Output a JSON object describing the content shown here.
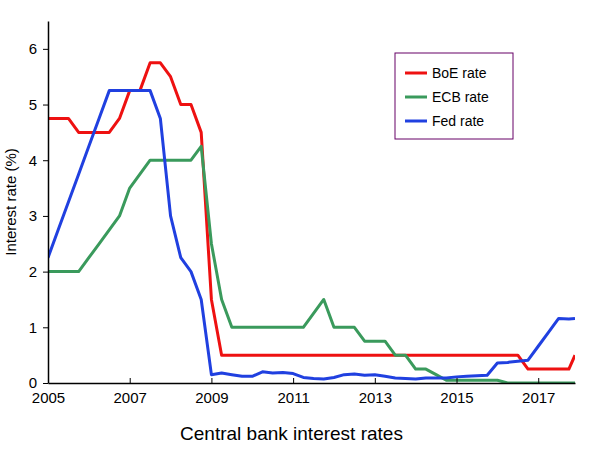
{
  "chart_data": {
    "type": "line",
    "title": "Central bank interest rates",
    "y_label": "Interest rate (%)",
    "x": [
      2005,
      2005.25,
      2005.5,
      2005.75,
      2006,
      2006.25,
      2006.5,
      2006.75,
      2007,
      2007.25,
      2007.5,
      2007.75,
      2008,
      2008.25,
      2008.5,
      2008.75,
      2009,
      2009.25,
      2009.5,
      2009.75,
      2010,
      2010.25,
      2010.5,
      2010.75,
      2011,
      2011.25,
      2011.5,
      2011.75,
      2012,
      2012.25,
      2012.5,
      2012.75,
      2013,
      2013.25,
      2013.5,
      2013.75,
      2014,
      2014.25,
      2014.5,
      2014.75,
      2015,
      2015.25,
      2015.5,
      2015.75,
      2016,
      2016.25,
      2016.5,
      2016.75,
      2017,
      2017.25,
      2017.5,
      2017.75,
      2017.9
    ],
    "series": [
      {
        "name": "BoE rate",
        "color": "#ee1111",
        "values": [
          4.75,
          4.75,
          4.75,
          4.5,
          4.5,
          4.5,
          4.5,
          4.75,
          5.25,
          5.25,
          5.75,
          5.75,
          5.5,
          5.0,
          5.0,
          4.5,
          1.5,
          0.5,
          0.5,
          0.5,
          0.5,
          0.5,
          0.5,
          0.5,
          0.5,
          0.5,
          0.5,
          0.5,
          0.5,
          0.5,
          0.5,
          0.5,
          0.5,
          0.5,
          0.5,
          0.5,
          0.5,
          0.5,
          0.5,
          0.5,
          0.5,
          0.5,
          0.5,
          0.5,
          0.5,
          0.5,
          0.5,
          0.25,
          0.25,
          0.25,
          0.25,
          0.25,
          0.5
        ]
      },
      {
        "name": "ECB rate",
        "color": "#3a9a5c",
        "values": [
          2,
          2,
          2,
          2,
          2.25,
          2.5,
          2.75,
          3,
          3.5,
          3.75,
          4,
          4,
          4,
          4,
          4,
          4.25,
          2.5,
          1.5,
          1,
          1,
          1,
          1,
          1,
          1,
          1,
          1,
          1.25,
          1.5,
          1,
          1,
          1,
          0.75,
          0.75,
          0.75,
          0.5,
          0.5,
          0.25,
          0.25,
          0.15,
          0.05,
          0.05,
          0.05,
          0.05,
          0.05,
          0.05,
          0,
          0,
          0,
          0,
          0,
          0,
          0,
          0
        ]
      },
      {
        "name": "Fed rate",
        "color": "#2040e0",
        "values": [
          2.25,
          2.75,
          3.25,
          3.75,
          4.25,
          4.75,
          5.25,
          5.25,
          5.25,
          5.25,
          5.25,
          4.75,
          3.0,
          2.25,
          2.0,
          1.5,
          0.15,
          0.18,
          0.15,
          0.12,
          0.12,
          0.2,
          0.18,
          0.19,
          0.17,
          0.1,
          0.08,
          0.07,
          0.1,
          0.15,
          0.16,
          0.14,
          0.15,
          0.12,
          0.09,
          0.08,
          0.07,
          0.09,
          0.09,
          0.09,
          0.11,
          0.12,
          0.13,
          0.14,
          0.36,
          0.37,
          0.39,
          0.41,
          0.66,
          0.91,
          1.16,
          1.15,
          1.16
        ]
      }
    ],
    "xlim": [
      2005,
      2017.9
    ],
    "xticks": [
      2005,
      2007,
      2009,
      2011,
      2013,
      2015,
      2017
    ],
    "ylim": [
      0,
      6.5
    ],
    "yticks": [
      0,
      1,
      2,
      3,
      4,
      5,
      6
    ],
    "grid": false,
    "legend": "upper right"
  }
}
